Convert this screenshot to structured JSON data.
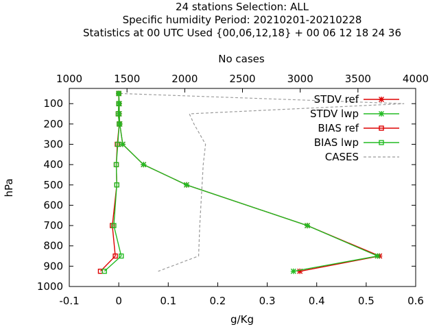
{
  "chart_data": {
    "type": "line",
    "title_lines": [
      "24 stations Selection: ALL",
      "Specific humidity  Period: 20210201-20210228",
      "Statistics at 00 UTC  Used {00,06,12,18} + 00 06 12 18 24 36"
    ],
    "xlabel": "g/Kg",
    "ylabel": "hPa",
    "x2label": "No cases",
    "xlim": [
      -0.1,
      0.6
    ],
    "x2lim": [
      1000,
      4000
    ],
    "ylim": [
      1000,
      25
    ],
    "xticks": [
      "-0.1",
      "0",
      "0.1",
      "0.2",
      "0.3",
      "0.4",
      "0.5",
      "0.6"
    ],
    "xtick_values": [
      -0.1,
      0,
      0.1,
      0.2,
      0.3,
      0.4,
      0.5,
      0.6
    ],
    "x2ticks": [
      "1000",
      "1500",
      "2000",
      "2500",
      "3000",
      "3500",
      "4000"
    ],
    "x2tick_values": [
      1000,
      1500,
      2000,
      2500,
      3000,
      3500,
      4000
    ],
    "yticks": [
      "100",
      "200",
      "300",
      "400",
      "500",
      "600",
      "700",
      "800",
      "900",
      "1000"
    ],
    "ytick_values": [
      100,
      200,
      300,
      400,
      500,
      600,
      700,
      800,
      900,
      1000
    ],
    "legend_position": "top-right",
    "series": [
      {
        "name": "STDV ref",
        "color": "#dd0000",
        "marker": "x",
        "axis": "x",
        "points": [
          [
            0.0,
            50
          ],
          [
            0.001,
            100
          ],
          [
            0.001,
            150
          ],
          [
            0.002,
            200
          ],
          [
            0.008,
            300
          ],
          [
            0.05,
            400
          ],
          [
            0.137,
            500
          ],
          [
            0.381,
            700
          ],
          [
            0.527,
            850
          ],
          [
            0.366,
            925
          ]
        ]
      },
      {
        "name": "STDV lwp",
        "color": "#22bb22",
        "marker": "x",
        "axis": "x",
        "points": [
          [
            0.0,
            50
          ],
          [
            0.001,
            100
          ],
          [
            0.001,
            150
          ],
          [
            0.002,
            200
          ],
          [
            0.008,
            300
          ],
          [
            0.05,
            400
          ],
          [
            0.137,
            500
          ],
          [
            0.381,
            700
          ],
          [
            0.523,
            850
          ],
          [
            0.353,
            925
          ]
        ]
      },
      {
        "name": "BIAS ref",
        "color": "#dd0000",
        "marker": "square",
        "axis": "x",
        "points": [
          [
            0.0,
            50
          ],
          [
            0.0,
            100
          ],
          [
            -0.001,
            150
          ],
          [
            0.001,
            200
          ],
          [
            -0.003,
            300
          ],
          [
            -0.005,
            400
          ],
          [
            -0.004,
            500
          ],
          [
            -0.013,
            700
          ],
          [
            -0.007,
            850
          ],
          [
            -0.037,
            925
          ]
        ]
      },
      {
        "name": "BIAS lwp",
        "color": "#22bb22",
        "marker": "square",
        "axis": "x",
        "points": [
          [
            0.0,
            50
          ],
          [
            0.0,
            100
          ],
          [
            -0.001,
            150
          ],
          [
            0.001,
            200
          ],
          [
            -0.002,
            300
          ],
          [
            -0.005,
            400
          ],
          [
            -0.004,
            500
          ],
          [
            -0.01,
            700
          ],
          [
            0.005,
            850
          ],
          [
            -0.029,
            925
          ]
        ]
      },
      {
        "name": "CASES",
        "color": "#999999",
        "marker": "none",
        "dashed": true,
        "axis": "x2",
        "points": [
          [
            1440,
            50
          ],
          [
            3900,
            100
          ],
          [
            2040,
            150
          ],
          [
            2080,
            200
          ],
          [
            2180,
            300
          ],
          [
            2160,
            400
          ],
          [
            2150,
            500
          ],
          [
            2130,
            700
          ],
          [
            2120,
            850
          ],
          [
            1770,
            925
          ]
        ]
      }
    ]
  }
}
